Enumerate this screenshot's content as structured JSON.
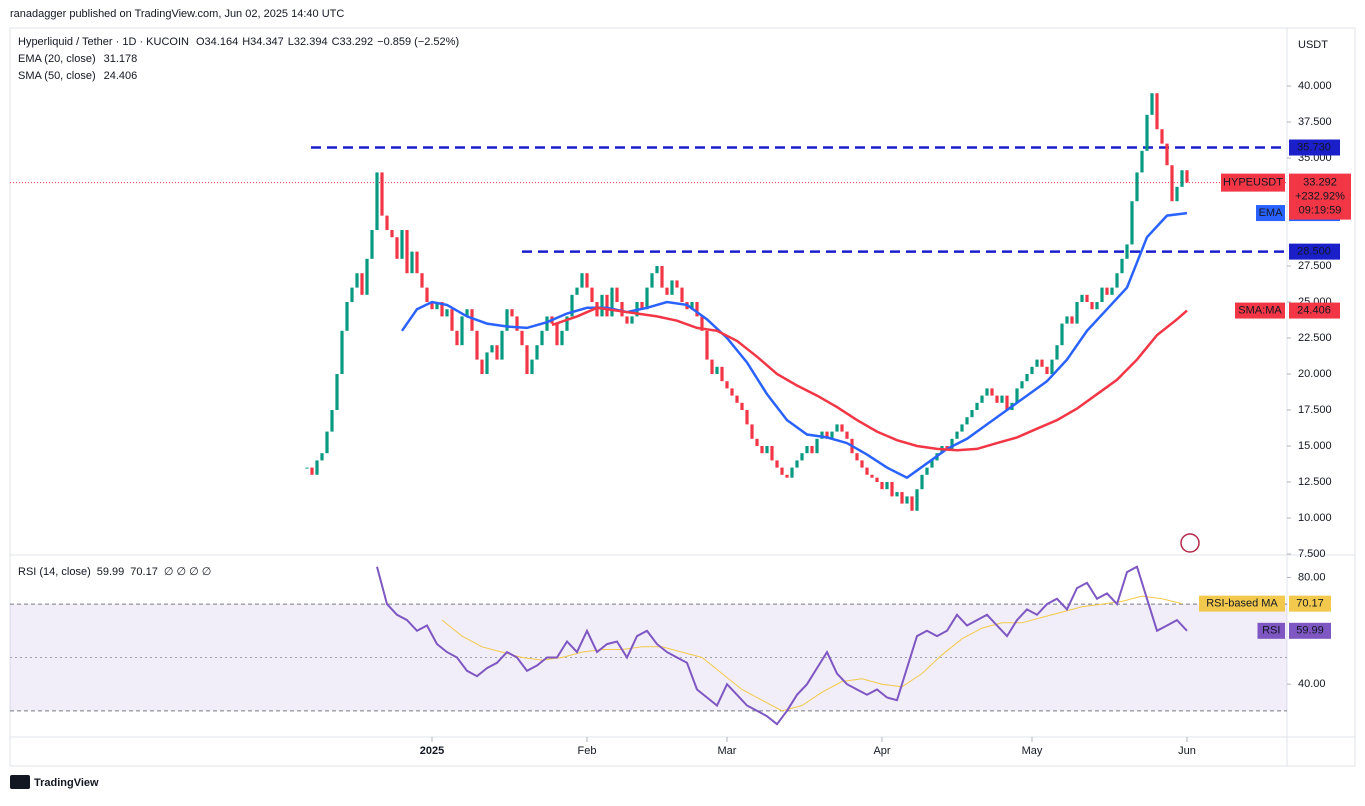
{
  "header": {
    "byline": "ranadagger published on TradingView.com, Jun 02, 2025 14:40 UTC"
  },
  "footer": {
    "brand": "TradingView"
  },
  "chart_data": {
    "type": "candlestick",
    "title": "Hyperliquid / Tether · 1D · KUCOIN",
    "ohlc_labels": [
      "O34.164",
      "H34.347",
      "L32.394",
      "C33.292",
      "−0.859 (−2.52%)"
    ],
    "currency": "USDT",
    "symbol": "HYPEUSDT",
    "change_label": "+232.92%",
    "countdown": "09:19:59",
    "up_color": "#089981",
    "down_color": "#f23645",
    "closes": [
      13.5,
      13,
      14,
      14.5,
      16,
      17.5,
      20,
      23,
      25,
      26,
      27,
      25.5,
      28,
      30,
      34,
      31,
      30,
      29.5,
      28,
      30,
      27,
      28.5,
      27,
      26,
      25,
      24.5,
      25,
      24,
      24.5,
      23,
      22,
      24,
      24.5,
      23,
      21,
      20,
      21.5,
      22,
      21,
      23,
      24.5,
      24,
      23,
      22,
      20,
      21,
      22,
      23,
      24,
      23.5,
      22,
      23,
      24,
      25.5,
      26,
      27,
      26,
      25,
      24,
      25.5,
      24,
      26,
      25,
      24,
      23.5,
      24,
      25,
      24.5,
      26,
      27,
      27.5,
      26,
      25.5,
      26.5,
      26,
      25,
      24.5,
      25,
      24,
      23,
      21,
      20,
      20.5,
      19.5,
      19,
      18.5,
      18,
      17.5,
      16.5,
      15.5,
      15,
      14.5,
      15,
      14,
      13.5,
      13,
      12.8,
      13.5,
      14,
      14.5,
      15,
      14.5,
      15.5,
      16,
      15.5,
      16,
      16.5,
      16,
      15.5,
      14.5,
      14,
      13.5,
      13,
      12.8,
      12.5,
      12,
      12.5,
      11.5,
      11.8,
      11,
      11.5,
      10.5,
      12,
      13,
      13.5,
      14,
      14.5,
      15,
      14.8,
      15.5,
      16,
      16.5,
      17,
      17.5,
      18,
      18.5,
      19,
      18.5,
      18,
      18.5,
      17.5,
      18,
      19,
      19.5,
      20,
      20.5,
      21,
      20.5,
      20,
      21,
      22,
      23.5,
      24,
      23.5,
      25,
      25.5,
      25,
      24.5,
      25,
      26,
      25.5,
      26,
      27,
      28,
      29,
      32,
      34,
      35.5,
      38,
      39.5,
      37,
      36,
      34.5,
      32,
      33,
      34.151,
      33.292
    ],
    "xlim": [
      -59.4,
      196
    ],
    "xticks": [
      {
        "value": 25,
        "label": "2025"
      },
      {
        "value": 56,
        "label": "Feb"
      },
      {
        "value": 84,
        "label": "Mar"
      },
      {
        "value": 115,
        "label": "Apr"
      },
      {
        "value": 145,
        "label": "May"
      },
      {
        "value": 176,
        "label": "Jun"
      }
    ],
    "ylim": [
      7.43,
      44.03
    ],
    "yticks": [
      {
        "value": 40,
        "label": "40.000"
      },
      {
        "value": 37.5,
        "label": "37.500"
      },
      {
        "value": 35,
        "label": "35.000"
      },
      {
        "value": 27.5,
        "label": "27.500"
      },
      {
        "value": 25,
        "label": "25.000"
      },
      {
        "value": 22.5,
        "label": "22.500"
      },
      {
        "value": 20,
        "label": "20.000"
      },
      {
        "value": 17.5,
        "label": "17.500"
      },
      {
        "value": 15,
        "label": "15.000"
      },
      {
        "value": 12.5,
        "label": "12.500"
      },
      {
        "value": 10,
        "label": "10.000"
      },
      {
        "value": 7.5,
        "label": "7.500"
      }
    ],
    "levels": [
      {
        "value": 35.73,
        "label": "35.730"
      },
      {
        "value": 28.5,
        "label": "28.500"
      }
    ],
    "level_color": "#1a1fc9",
    "series": [
      {
        "name": "EMA (20, close)",
        "tag": "EMA",
        "color": "#2962ff",
        "x": [
          19,
          22,
          25,
          28,
          32,
          36,
          40,
          44,
          48,
          52,
          56,
          60,
          64,
          68,
          72,
          76,
          80,
          84,
          88,
          92,
          96,
          100,
          104,
          108,
          112,
          116,
          120,
          124,
          128,
          132,
          136,
          140,
          144,
          148,
          152,
          156,
          160,
          164,
          168,
          172,
          176
        ],
        "values": [
          23,
          24.5,
          25,
          24.8,
          24,
          23.5,
          23.3,
          23.2,
          23.6,
          24.2,
          24.6,
          24.6,
          24.3,
          24.6,
          25,
          24.8,
          23.8,
          22.5,
          20.8,
          18.6,
          16.8,
          15.8,
          15.6,
          15.2,
          14.4,
          13.5,
          12.8,
          13.8,
          14.8,
          15.5,
          16.5,
          17.5,
          18.5,
          19.5,
          21,
          23,
          24.5,
          26,
          29.5,
          31,
          31.178
        ]
      },
      {
        "name": "SMA (50, close)",
        "tag": "SMA:MA",
        "color": "#f23645",
        "x": [
          49,
          54,
          58,
          62,
          66,
          70,
          74,
          78,
          82,
          86,
          90,
          94,
          98,
          102,
          106,
          110,
          114,
          118,
          122,
          126,
          130,
          134,
          138,
          142,
          146,
          150,
          154,
          158,
          162,
          166,
          170,
          174,
          176
        ],
        "values": [
          23.4,
          24,
          24.6,
          24.4,
          24.2,
          24,
          23.7,
          23.2,
          23,
          22.3,
          21.2,
          20,
          19.2,
          18.5,
          17.7,
          16.8,
          16,
          15.4,
          15,
          14.8,
          14.7,
          14.8,
          15.2,
          15.6,
          16.2,
          16.8,
          17.6,
          18.6,
          19.6,
          21,
          22.7,
          23.8,
          24.406
        ]
      }
    ],
    "rsi": {
      "name": "RSI (14, close)",
      "tag": "RSI",
      "color": "#7e57c2",
      "extra": "∅ ∅ ∅ ∅",
      "x": [
        14,
        16,
        18,
        20,
        22,
        24,
        26,
        28,
        30,
        32,
        34,
        36,
        38,
        40,
        42,
        44,
        46,
        48,
        50,
        52,
        54,
        56,
        58,
        60,
        62,
        64,
        66,
        68,
        70,
        72,
        74,
        76,
        78,
        80,
        82,
        84,
        86,
        88,
        90,
        92,
        94,
        96,
        98,
        100,
        102,
        104,
        106,
        108,
        110,
        112,
        114,
        116,
        118,
        120,
        122,
        124,
        126,
        128,
        130,
        132,
        134,
        136,
        138,
        140,
        142,
        144,
        146,
        148,
        150,
        152,
        154,
        156,
        158,
        160,
        162,
        164,
        166,
        168,
        170,
        172,
        174,
        176
      ],
      "values": [
        84,
        70,
        66,
        64,
        60,
        62,
        55,
        52,
        50,
        45,
        43,
        46,
        48,
        52,
        50,
        45,
        47,
        50,
        50,
        56,
        52,
        60,
        52,
        55,
        56,
        50,
        58,
        60,
        55,
        52,
        50,
        48,
        38,
        35,
        32,
        40,
        36,
        32,
        30,
        28,
        25,
        30,
        36,
        40,
        46,
        52,
        44,
        40,
        38,
        36,
        38,
        35,
        34,
        46,
        58,
        60,
        58,
        60,
        66,
        62,
        64,
        66,
        62,
        58,
        64,
        68,
        66,
        70,
        72,
        68,
        76,
        78,
        72,
        74,
        70,
        82,
        84,
        72,
        60,
        62,
        64,
        59.99
      ],
      "ma": {
        "name": "RSI-based MA",
        "color": "#f2c94c",
        "x": [
          27,
          31,
          35,
          39,
          43,
          47,
          51,
          55,
          59,
          63,
          67,
          71,
          75,
          79,
          83,
          87,
          91,
          95,
          99,
          103,
          107,
          111,
          115,
          119,
          123,
          127,
          131,
          135,
          139,
          143,
          147,
          151,
          155,
          159,
          163,
          167,
          171,
          175
        ],
        "values": [
          64,
          58,
          54,
          52,
          50,
          49,
          50,
          52,
          53,
          53,
          54,
          54,
          52,
          50,
          44,
          38,
          34,
          30,
          32,
          37,
          41,
          42,
          40,
          39,
          44,
          51,
          57,
          61,
          63,
          63,
          65,
          67,
          69,
          70,
          71,
          73,
          72,
          70.17
        ]
      },
      "ylim": [
        20.2,
        88.4
      ],
      "yticks": [
        {
          "value": 80,
          "label": "80.00"
        },
        {
          "value": 40,
          "label": "40.00"
        }
      ],
      "bands": [
        30,
        70
      ],
      "midline": 50
    }
  }
}
